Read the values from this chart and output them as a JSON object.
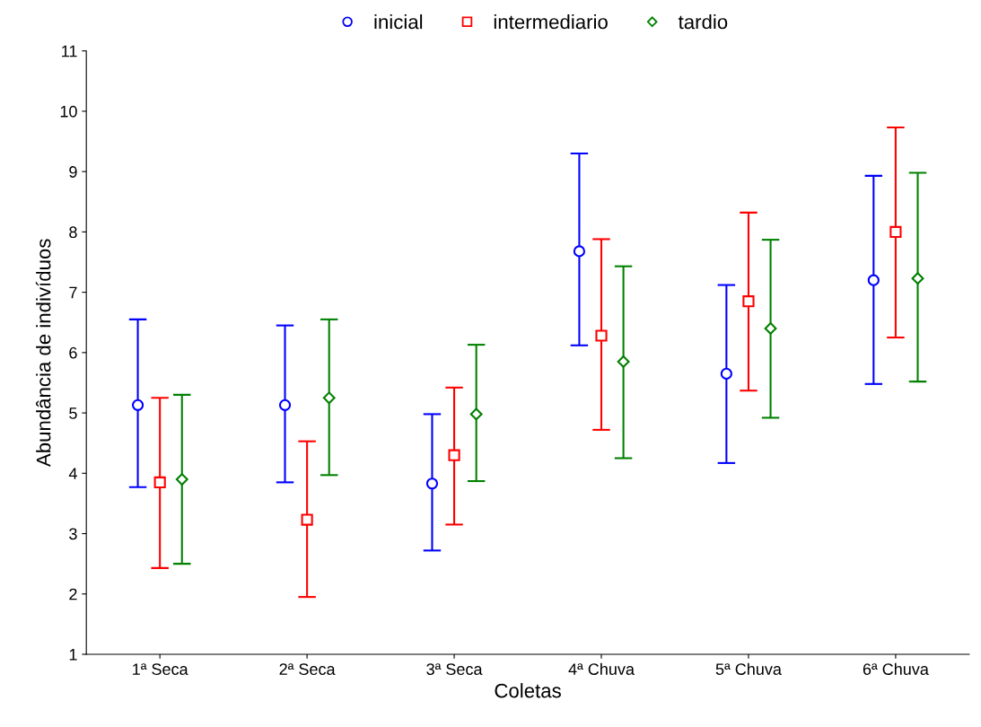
{
  "chart_data": {
    "type": "scatter",
    "xlabel": "Coletas",
    "ylabel": "Abundância de indivíduos",
    "categories": [
      "1ª Seca",
      "2ª Seca",
      "3ª Seca",
      "4ª Chuva",
      "5ª Chuva",
      "6ª Chuva"
    ],
    "ylim": [
      1,
      11
    ],
    "yticks": [
      1,
      2,
      3,
      4,
      5,
      6,
      7,
      8,
      9,
      10,
      11
    ],
    "grid": false,
    "legend": "top",
    "series": [
      {
        "name": "inicial",
        "color": "#0000ff",
        "marker": "circle",
        "values": [
          5.13,
          5.13,
          3.83,
          7.68,
          5.65,
          7.2
        ],
        "errors": [
          [
            3.77,
            6.55
          ],
          [
            3.85,
            6.45
          ],
          [
            2.72,
            4.98
          ],
          [
            6.12,
            9.3
          ],
          [
            4.17,
            7.12
          ],
          [
            5.48,
            8.93
          ]
        ]
      },
      {
        "name": "intermediario",
        "color": "#ff0000",
        "marker": "square",
        "values": [
          3.85,
          3.23,
          4.3,
          6.28,
          6.85,
          8.0
        ],
        "errors": [
          [
            2.43,
            5.25
          ],
          [
            1.95,
            4.53
          ],
          [
            3.15,
            5.42
          ],
          [
            4.72,
            7.88
          ],
          [
            5.37,
            8.32
          ],
          [
            6.25,
            9.73
          ]
        ]
      },
      {
        "name": "tardio",
        "color": "#008000",
        "marker": "diamond",
        "values": [
          3.9,
          5.25,
          4.98,
          5.85,
          6.4,
          7.23
        ],
        "errors": [
          [
            2.5,
            5.3
          ],
          [
            3.97,
            6.55
          ],
          [
            3.87,
            6.13
          ],
          [
            4.25,
            7.43
          ],
          [
            4.92,
            7.87
          ],
          [
            5.52,
            8.98
          ]
        ]
      }
    ]
  }
}
